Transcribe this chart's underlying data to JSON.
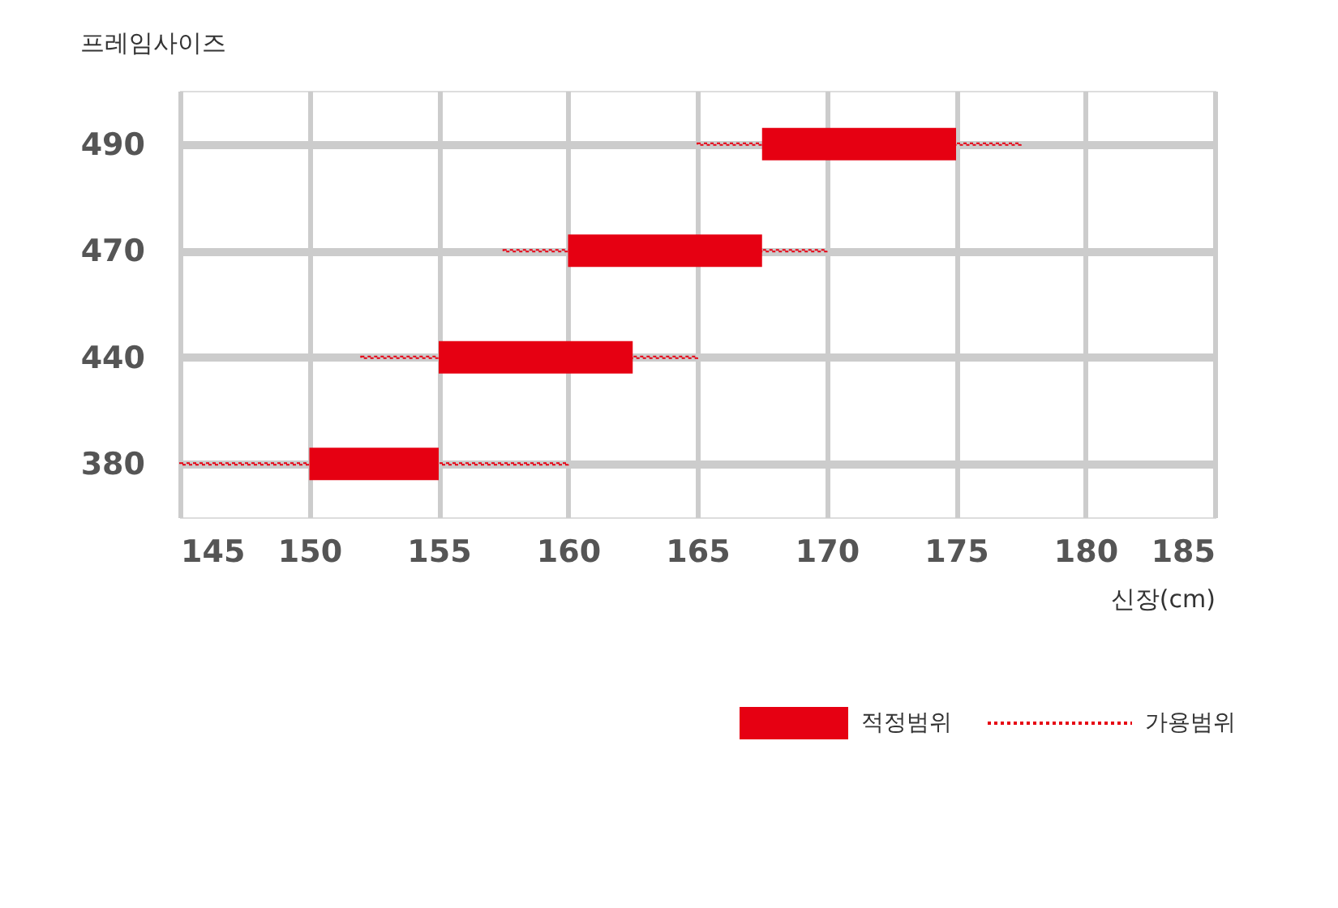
{
  "chart_data": {
    "type": "bar",
    "orientation": "horizontal",
    "ylabel": "프레임사이즈",
    "xlabel": "신장(cm)",
    "categories": [
      "490",
      "470",
      "440",
      "380"
    ],
    "series": [
      {
        "name": "가용범위",
        "color": "#e60012",
        "line_style": "dotted",
        "base": [
          165,
          157.5,
          152,
          145
        ],
        "values": [
          12.5,
          12.5,
          13,
          15
        ]
      },
      {
        "name": "적정범위",
        "color": "#e60012",
        "line_style": "solid",
        "base": [
          167.5,
          160,
          155,
          150
        ],
        "values": [
          7.5,
          7.5,
          7.5,
          5
        ]
      }
    ],
    "xlim": [
      145,
      185
    ],
    "xticks": [
      145,
      150,
      155,
      160,
      165,
      170,
      175,
      180,
      185
    ],
    "grid": true,
    "legend": "bottom right"
  }
}
